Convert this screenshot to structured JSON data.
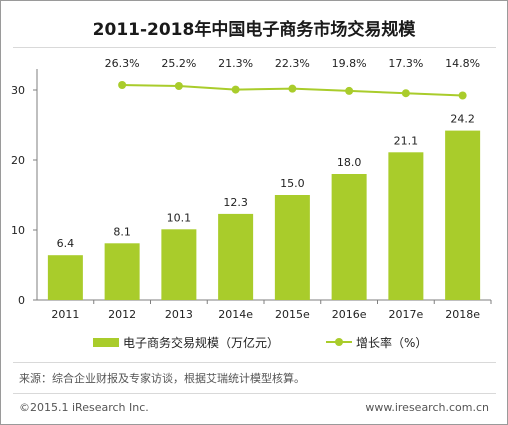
{
  "title": "2011-2018年中国电子商务市场交易规模",
  "legend": {
    "bar_label": "电子商务交易规模（万亿元）",
    "line_label": "增长率（%）"
  },
  "source": "来源：综合企业财报及专家访谈，根据艾瑞统计模型核算。",
  "copyright": "©2015.1 iResearch Inc.",
  "website": "www.iresearch.com.cn",
  "colors": {
    "bar": "#a9cc2b",
    "line": "#a9cc2b",
    "axis": "#7f7f7f"
  },
  "chart_data": {
    "type": "bar",
    "categories": [
      "2011",
      "2012",
      "2013",
      "2014e",
      "2015e",
      "2016e",
      "2017e",
      "2018e"
    ],
    "series": [
      {
        "name": "电子商务交易规模（万亿元）",
        "type": "bar",
        "values": [
          6.4,
          8.1,
          10.1,
          12.3,
          15.0,
          18.0,
          21.1,
          24.2
        ],
        "labels": [
          "6.4",
          "8.1",
          "10.1",
          "12.3",
          "15.0",
          "18.0",
          "21.1",
          "24.2"
        ]
      },
      {
        "name": "增长率（%）",
        "type": "line",
        "values": [
          null,
          26.3,
          25.2,
          21.3,
          22.3,
          19.8,
          17.3,
          14.8
        ],
        "labels": [
          "",
          "26.3%",
          "25.2%",
          "21.3%",
          "22.3%",
          "19.8%",
          "17.3%",
          "14.8%"
        ]
      }
    ],
    "y_ticks": [
      0,
      10,
      20,
      30
    ],
    "ylim": [
      0,
      35
    ],
    "grid": false,
    "legend_position": "bottom"
  }
}
